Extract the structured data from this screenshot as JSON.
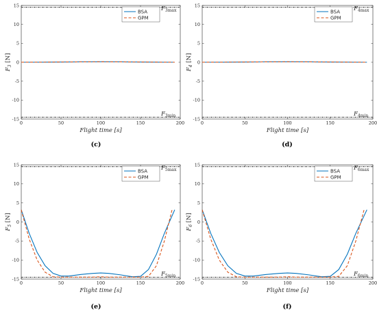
{
  "chart_data": [
    {
      "panel": "(c)",
      "type": "line",
      "xlabel": "Flight time [s]",
      "ylabel": "F3 [N]",
      "ylabel_base": "F",
      "ylabel_sub": "3",
      "ylabel_unit": "[N]",
      "xlim": [
        0,
        200
      ],
      "ylim": [
        -15,
        15
      ],
      "xticks": [
        0,
        50,
        100,
        150,
        200
      ],
      "yticks": [
        -15,
        -10,
        -5,
        0,
        5,
        10,
        15
      ],
      "max_label": {
        "base": "F",
        "sub": "3max",
        "value": 14.5
      },
      "min_label": {
        "base": "F",
        "sub": "3min",
        "value": -14.5
      },
      "legend": {
        "position": "top-right",
        "entries": [
          "BSA",
          "GPM"
        ]
      },
      "series": [
        {
          "name": "BSA",
          "color": "#0072BD",
          "dash": "solid",
          "x": [
            0,
            25,
            50,
            75,
            100,
            125,
            150,
            175,
            193
          ],
          "y": [
            0.0,
            0.02,
            0.06,
            0.1,
            0.12,
            0.1,
            0.06,
            0.02,
            0.0
          ]
        },
        {
          "name": "GPM",
          "color": "#D95319",
          "dash": "dashed",
          "x": [
            0,
            25,
            50,
            75,
            100,
            125,
            150,
            175,
            193
          ],
          "y": [
            0.0,
            0.02,
            0.06,
            0.1,
            0.12,
            0.1,
            0.06,
            0.02,
            0.0
          ]
        }
      ]
    },
    {
      "panel": "(d)",
      "type": "line",
      "xlabel": "Flight time [s]",
      "ylabel": "F4 [N]",
      "ylabel_base": "F",
      "ylabel_sub": "4",
      "ylabel_unit": "[N]",
      "xlim": [
        0,
        200
      ],
      "ylim": [
        -15,
        15
      ],
      "xticks": [
        0,
        50,
        100,
        150,
        200
      ],
      "yticks": [
        -15,
        -10,
        -5,
        0,
        5,
        10,
        15
      ],
      "max_label": {
        "base": "F",
        "sub": "4max",
        "value": 14.5
      },
      "min_label": {
        "base": "F",
        "sub": "4min",
        "value": -14.5
      },
      "legend": {
        "position": "top-right",
        "entries": [
          "BSA",
          "GPM"
        ]
      },
      "series": [
        {
          "name": "BSA",
          "color": "#0072BD",
          "dash": "solid",
          "x": [
            0,
            25,
            50,
            75,
            100,
            125,
            150,
            175,
            193
          ],
          "y": [
            0.0,
            0.02,
            0.06,
            0.1,
            0.12,
            0.1,
            0.06,
            0.02,
            0.0
          ]
        },
        {
          "name": "GPM",
          "color": "#D95319",
          "dash": "dashed",
          "x": [
            0,
            25,
            50,
            75,
            100,
            125,
            150,
            175,
            193
          ],
          "y": [
            0.0,
            0.02,
            0.06,
            0.1,
            0.12,
            0.1,
            0.06,
            0.02,
            0.0
          ]
        }
      ]
    },
    {
      "panel": "(e)",
      "type": "line",
      "xlabel": "Flight time [s]",
      "ylabel": "F5 [N]",
      "ylabel_base": "F",
      "ylabel_sub": "5",
      "ylabel_unit": "[N]",
      "xlim": [
        0,
        200
      ],
      "ylim": [
        -15,
        15
      ],
      "xticks": [
        0,
        50,
        100,
        150,
        200
      ],
      "yticks": [
        -15,
        -10,
        -5,
        0,
        5,
        10,
        15
      ],
      "max_label": {
        "base": "F",
        "sub": "5max",
        "value": 14.5
      },
      "min_label": {
        "base": "F",
        "sub": "5min",
        "value": -14.5
      },
      "legend": {
        "position": "top-right",
        "entries": [
          "BSA",
          "GPM"
        ]
      },
      "series": [
        {
          "name": "BSA",
          "color": "#0072BD",
          "dash": "solid",
          "x": [
            0,
            10,
            20,
            30,
            40,
            50,
            60,
            75,
            90,
            100,
            110,
            125,
            140,
            150,
            160,
            170,
            180,
            193
          ],
          "y": [
            3.2,
            -3.0,
            -8.0,
            -11.5,
            -13.5,
            -14.2,
            -14.2,
            -13.8,
            -13.5,
            -13.4,
            -13.5,
            -13.9,
            -14.4,
            -14.3,
            -12.5,
            -8.5,
            -3.0,
            3.2
          ]
        },
        {
          "name": "GPM",
          "color": "#D95319",
          "dash": "dashed",
          "x": [
            0,
            10,
            20,
            30,
            40,
            50,
            60,
            75,
            90,
            100,
            110,
            125,
            140,
            150,
            160,
            170,
            180,
            190
          ],
          "y": [
            3.2,
            -4.5,
            -10.0,
            -13.2,
            -14.4,
            -14.5,
            -14.5,
            -14.5,
            -14.5,
            -14.4,
            -14.5,
            -14.5,
            -14.5,
            -14.5,
            -14.3,
            -11.5,
            -5.0,
            3.5
          ]
        }
      ]
    },
    {
      "panel": "(f)",
      "type": "line",
      "xlabel": "Flight time [s]",
      "ylabel": "F6 [N]",
      "ylabel_base": "F",
      "ylabel_sub": "6",
      "ylabel_unit": "[N]",
      "xlim": [
        0,
        200
      ],
      "ylim": [
        -15,
        15
      ],
      "xticks": [
        0,
        50,
        100,
        150,
        200
      ],
      "yticks": [
        -15,
        -10,
        -5,
        0,
        5,
        10,
        15
      ],
      "max_label": {
        "base": "F",
        "sub": "6max",
        "value": 14.5
      },
      "min_label": {
        "base": "F",
        "sub": "6min",
        "value": -14.5
      },
      "legend": {
        "position": "top-right",
        "entries": [
          "BSA",
          "GPM"
        ]
      },
      "series": [
        {
          "name": "BSA",
          "color": "#0072BD",
          "dash": "solid",
          "x": [
            0,
            10,
            20,
            30,
            40,
            50,
            60,
            75,
            90,
            100,
            110,
            125,
            140,
            150,
            160,
            170,
            180,
            193
          ],
          "y": [
            3.2,
            -3.0,
            -8.0,
            -11.5,
            -13.5,
            -14.2,
            -14.2,
            -13.8,
            -13.5,
            -13.4,
            -13.5,
            -13.9,
            -14.4,
            -14.3,
            -12.5,
            -8.5,
            -3.0,
            3.2
          ]
        },
        {
          "name": "GPM",
          "color": "#D95319",
          "dash": "dashed",
          "x": [
            0,
            10,
            20,
            30,
            40,
            50,
            60,
            75,
            90,
            100,
            110,
            125,
            140,
            150,
            160,
            170,
            180,
            190
          ],
          "y": [
            3.2,
            -4.5,
            -10.0,
            -13.2,
            -14.4,
            -14.5,
            -14.5,
            -14.5,
            -14.5,
            -14.4,
            -14.5,
            -14.5,
            -14.5,
            -14.5,
            -14.3,
            -11.5,
            -5.0,
            3.5
          ]
        }
      ]
    }
  ]
}
